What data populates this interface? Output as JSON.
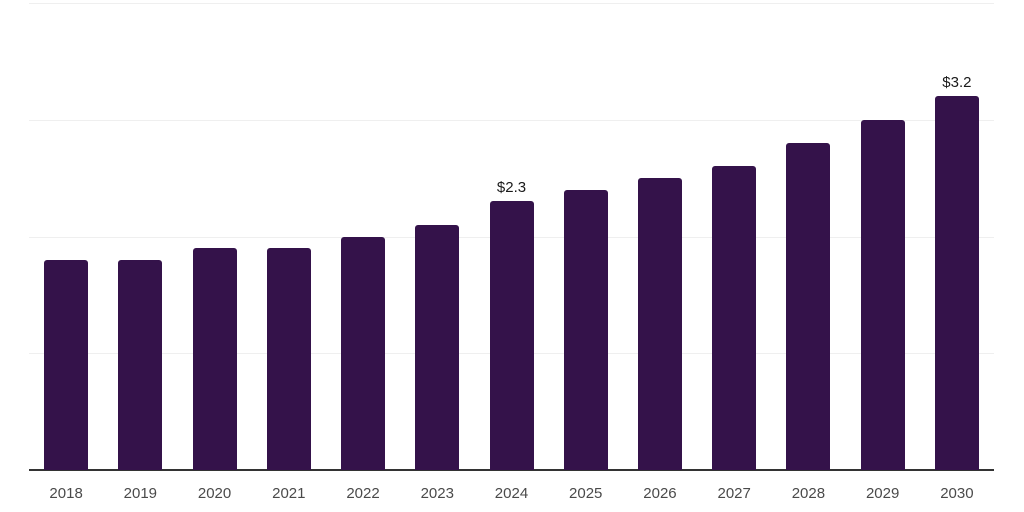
{
  "chart_data": {
    "type": "bar",
    "title": "",
    "xlabel": "",
    "ylabel": "",
    "categories": [
      "2018",
      "2019",
      "2020",
      "2021",
      "2022",
      "2023",
      "2024",
      "2025",
      "2026",
      "2027",
      "2028",
      "2029",
      "2030"
    ],
    "values": [
      1.8,
      1.8,
      1.9,
      1.9,
      2.0,
      2.1,
      2.3,
      2.4,
      2.5,
      2.6,
      2.8,
      3.0,
      3.2
    ],
    "value_labels": [
      "",
      "",
      "",
      "",
      "",
      "",
      "$2.3",
      "",
      "",
      "",
      "",
      "",
      "$3.2"
    ],
    "ylim": [
      0,
      4
    ],
    "gridline_values": [
      1,
      2,
      3,
      4
    ],
    "grid": "horizontal-only",
    "legend": "none",
    "y_tick_labels": "none"
  },
  "colors": {
    "background": "#ffffff",
    "bar": "#34124a",
    "axis": "#333333",
    "gridline": "#efefef",
    "tick_label": "#4a4a4a",
    "value_label": "#1a1a1a"
  }
}
